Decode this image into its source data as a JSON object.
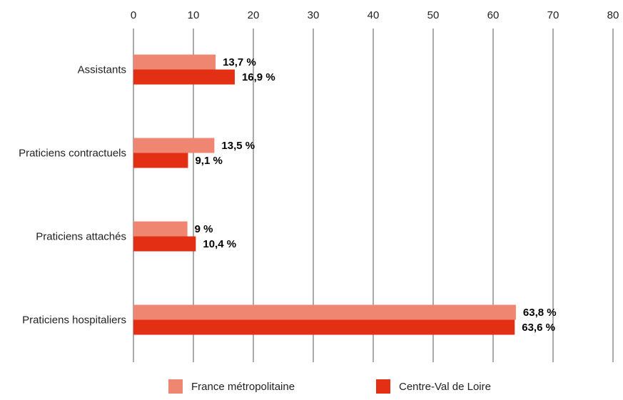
{
  "chart_data": {
    "type": "bar",
    "orientation": "horizontal",
    "categories": [
      "Assistants",
      "Praticiens contractuels",
      "Praticiens attachés",
      "Praticiens hospitaliers"
    ],
    "series": [
      {
        "name": "France métropolitaine",
        "color": "#ef8672",
        "values": [
          13.7,
          13.5,
          9,
          63.8
        ],
        "labels": [
          "13,7 %",
          "13,5 %",
          "9 %",
          "63,8 %"
        ]
      },
      {
        "name": "Centre-Val de Loire",
        "color": "#e32f14",
        "values": [
          16.9,
          9.1,
          10.4,
          63.6
        ],
        "labels": [
          "16,9 %",
          "9,1 %",
          "10,4 %",
          "63,6 %"
        ]
      }
    ],
    "xlim": [
      0,
      80
    ],
    "xticks": [
      "0",
      "10",
      "20",
      "30",
      "40",
      "50",
      "60",
      "70",
      "80"
    ],
    "x_axis_position": "top",
    "grid": true,
    "legend_position": "bottom"
  }
}
